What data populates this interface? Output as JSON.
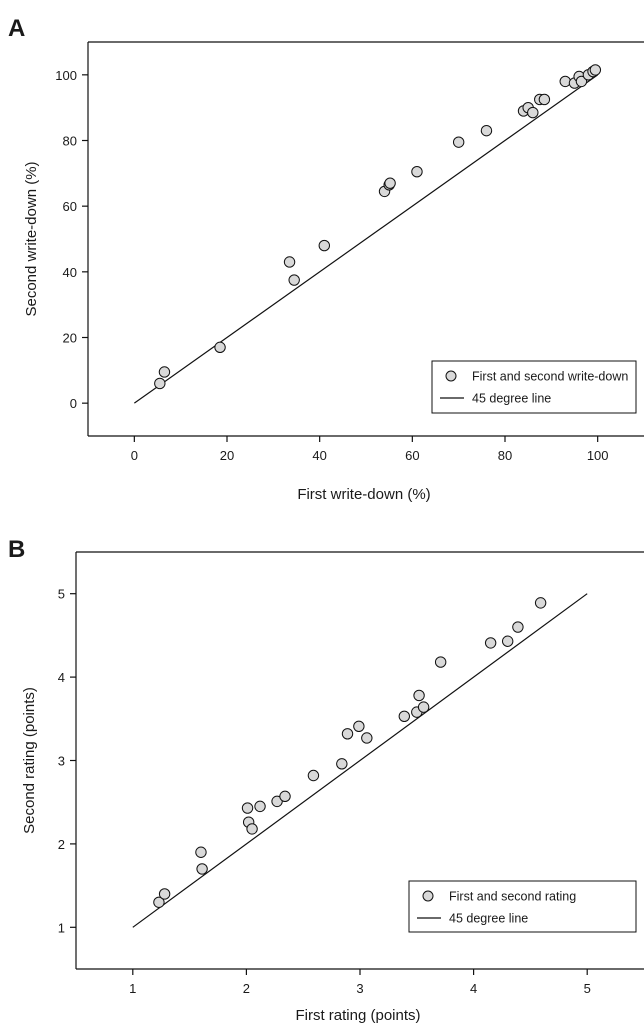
{
  "chart_data": [
    {
      "type": "scatter",
      "panel": "A",
      "title": "",
      "xlabel": "First write-down (%)",
      "ylabel": "Second write-down (%)",
      "xlim": [
        -10,
        110
      ],
      "ylim": [
        -10,
        110
      ],
      "xticks": [
        0,
        20,
        40,
        60,
        80,
        100
      ],
      "yticks": [
        0,
        20,
        40,
        60,
        80,
        100
      ],
      "grid": false,
      "legend_position": "lower-right",
      "series": [
        {
          "name": "First and second write-down",
          "marker": "circle",
          "x": [
            5.5,
            6.5,
            18.5,
            33.5,
            34.5,
            41,
            54,
            55,
            55.2,
            61,
            70,
            76,
            84,
            85,
            86,
            87.5,
            88.5,
            93,
            95,
            96,
            96.5,
            98,
            99,
            99.5
          ],
          "y": [
            6,
            9.5,
            17,
            43,
            37.5,
            48,
            64.5,
            66.5,
            67,
            70.5,
            79.5,
            83,
            89,
            90,
            88.5,
            92.5,
            92.5,
            98,
            97.5,
            99.5,
            98,
            100,
            101,
            101.5
          ]
        },
        {
          "name": "45 degree line",
          "type": "line",
          "x": [
            0,
            100
          ],
          "y": [
            0,
            100
          ]
        }
      ]
    },
    {
      "type": "scatter",
      "panel": "B",
      "title": "",
      "xlabel": "First rating (points)",
      "ylabel": "Second rating (points)",
      "xlim": [
        0.5,
        5.5
      ],
      "ylim": [
        0.5,
        5.5
      ],
      "xticks": [
        1,
        2,
        3,
        4,
        5
      ],
      "yticks": [
        1,
        2,
        3,
        4,
        5
      ],
      "grid": false,
      "legend_position": "lower-right",
      "series": [
        {
          "name": "First and second rating",
          "marker": "circle",
          "x": [
            1.23,
            1.28,
            1.6,
            1.61,
            2.01,
            2.02,
            2.05,
            2.12,
            2.27,
            2.34,
            2.59,
            2.84,
            2.89,
            2.99,
            3.06,
            3.39,
            3.5,
            3.52,
            3.56,
            3.71,
            4.15,
            4.3,
            4.39,
            4.59
          ],
          "y": [
            1.3,
            1.4,
            1.9,
            1.7,
            2.43,
            2.26,
            2.18,
            2.45,
            2.51,
            2.57,
            2.82,
            2.96,
            3.32,
            3.41,
            3.27,
            3.53,
            3.58,
            3.78,
            3.64,
            4.18,
            4.41,
            4.43,
            4.6,
            4.89
          ]
        },
        {
          "name": "45 degree line",
          "type": "line",
          "x": [
            1,
            5
          ],
          "y": [
            1,
            5
          ]
        }
      ]
    }
  ]
}
